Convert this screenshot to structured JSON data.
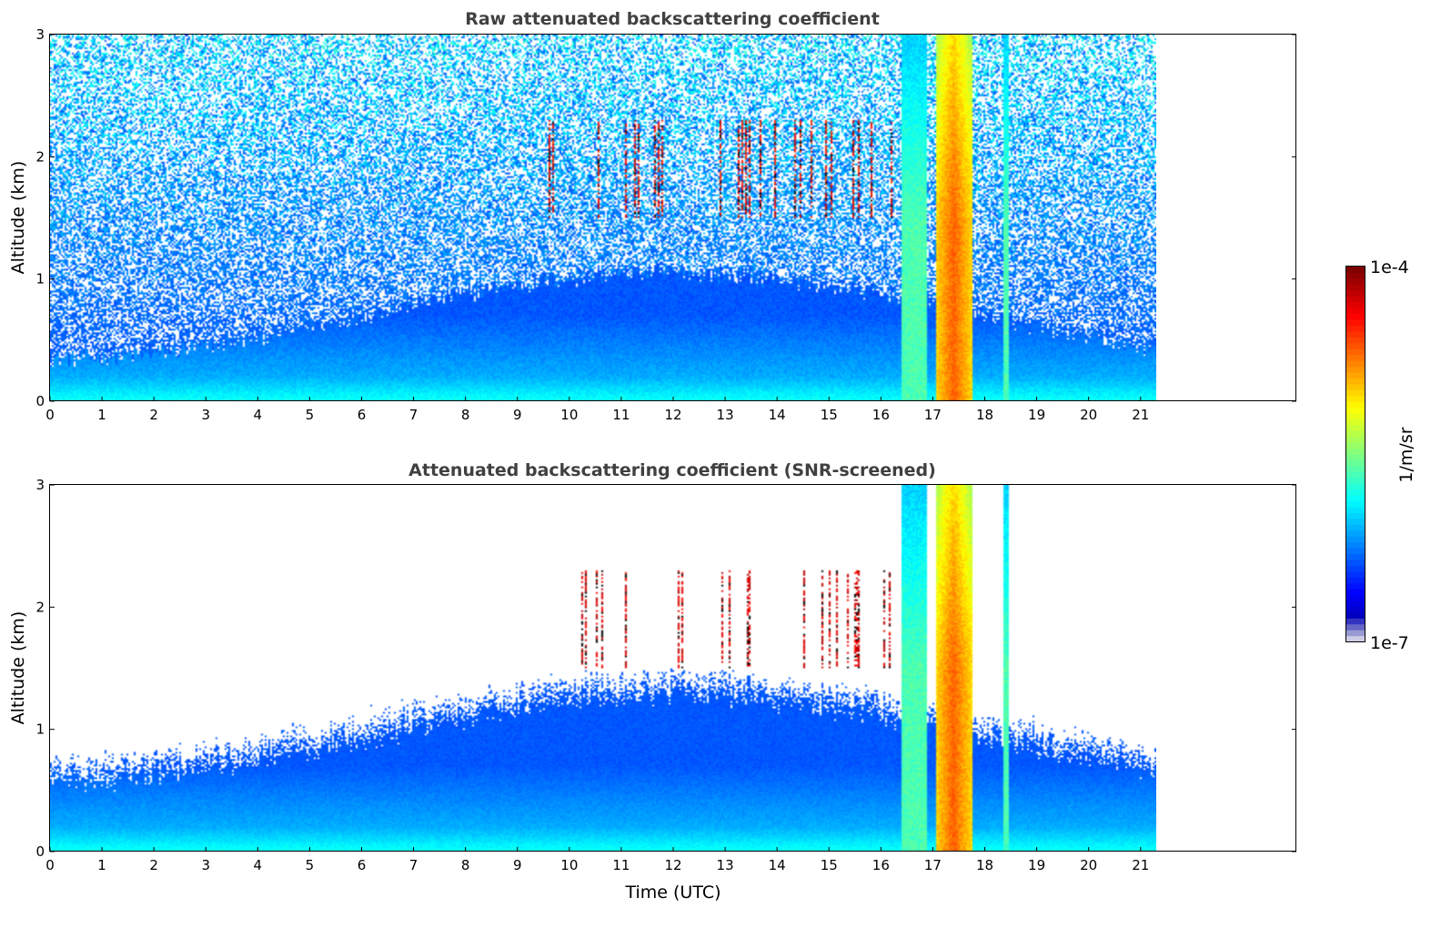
{
  "chart_data": [
    {
      "type": "heatmap",
      "title": "Raw attenuated backscattering coefficient",
      "xlabel": "",
      "ylabel": "Altitude (km)",
      "xlim": [
        0,
        24
      ],
      "ylim": [
        0,
        3
      ],
      "x_ticks": [
        "0",
        "1",
        "2",
        "3",
        "4",
        "5",
        "6",
        "7",
        "8",
        "9",
        "10",
        "11",
        "12",
        "13",
        "14",
        "15",
        "16",
        "17",
        "18",
        "19",
        "20",
        "21"
      ],
      "y_ticks": [
        "0",
        "1",
        "2",
        "3"
      ],
      "data_time_range": [
        0,
        21.3
      ],
      "features": {
        "boundary_layer_top_km": 0.7,
        "cloud_columns_utc": [
          [
            16.4,
            16.9
          ],
          [
            17.05,
            17.75
          ],
          [
            18.35,
            18.45
          ]
        ],
        "aerosol_layer_km": [
          1.5,
          2.3
        ]
      }
    },
    {
      "type": "heatmap",
      "title": "Attenuated backscattering coefficient (SNR-screened)",
      "xlabel": "Time (UTC)",
      "ylabel": "Altitude (km)",
      "xlim": [
        0,
        24
      ],
      "ylim": [
        0,
        3
      ],
      "x_ticks": [
        "0",
        "1",
        "2",
        "3",
        "4",
        "5",
        "6",
        "7",
        "8",
        "9",
        "10",
        "11",
        "12",
        "13",
        "14",
        "15",
        "16",
        "17",
        "18",
        "19",
        "20",
        "21"
      ],
      "y_ticks": [
        "0",
        "1",
        "2",
        "3"
      ],
      "data_time_range": [
        0,
        21.3
      ],
      "features": {
        "boundary_layer_top_km": 1.0,
        "cloud_columns_utc": [
          [
            16.4,
            16.9
          ],
          [
            17.05,
            17.75
          ],
          [
            18.35,
            18.45
          ]
        ]
      }
    }
  ],
  "colorbar": {
    "min_label": "1e-7",
    "max_label": "1e-4",
    "unit": "1/m/sr",
    "colormap": "jet"
  }
}
